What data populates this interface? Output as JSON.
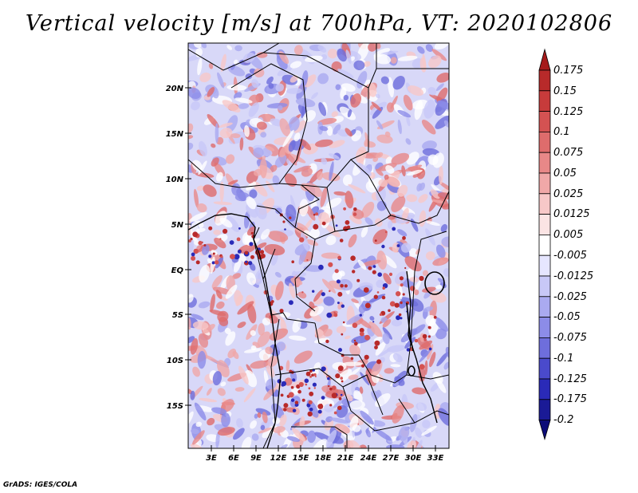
{
  "title": "Vertical velocity [m/s] at 700hPa, VT: 2020102806",
  "credit": "GrADS: IGES/COLA",
  "axes": {
    "lat_labels": [
      "20N",
      "15N",
      "10N",
      "5N",
      "EQ",
      "5S",
      "10S",
      "15S"
    ],
    "lon_labels": [
      "3E",
      "6E",
      "9E",
      "12E",
      "15E",
      "18E",
      "21E",
      "24E",
      "27E",
      "30E",
      "33E"
    ]
  },
  "colorbar": {
    "labels": [
      "0.175",
      "0.15",
      "0.125",
      "0.1",
      "0.075",
      "0.05",
      "0.025",
      "0.0125",
      "0.005",
      "-0.005",
      "-0.0125",
      "-0.025",
      "-0.05",
      "-0.075",
      "-0.1",
      "-0.125",
      "-0.175",
      "-0.2"
    ],
    "colors": [
      "#a51b1b",
      "#b82a2a",
      "#c73b3b",
      "#d45252",
      "#de6c6c",
      "#e88888",
      "#f0a8a8",
      "#f7c8c8",
      "#fbe4e4",
      "#ffffff",
      "#e6e6ff",
      "#c8c8f7",
      "#aaaaf0",
      "#8c8ce8",
      "#6e6edc",
      "#4a4acc",
      "#2a2ab8",
      "#1a1a96",
      "#0c0c78"
    ]
  }
}
